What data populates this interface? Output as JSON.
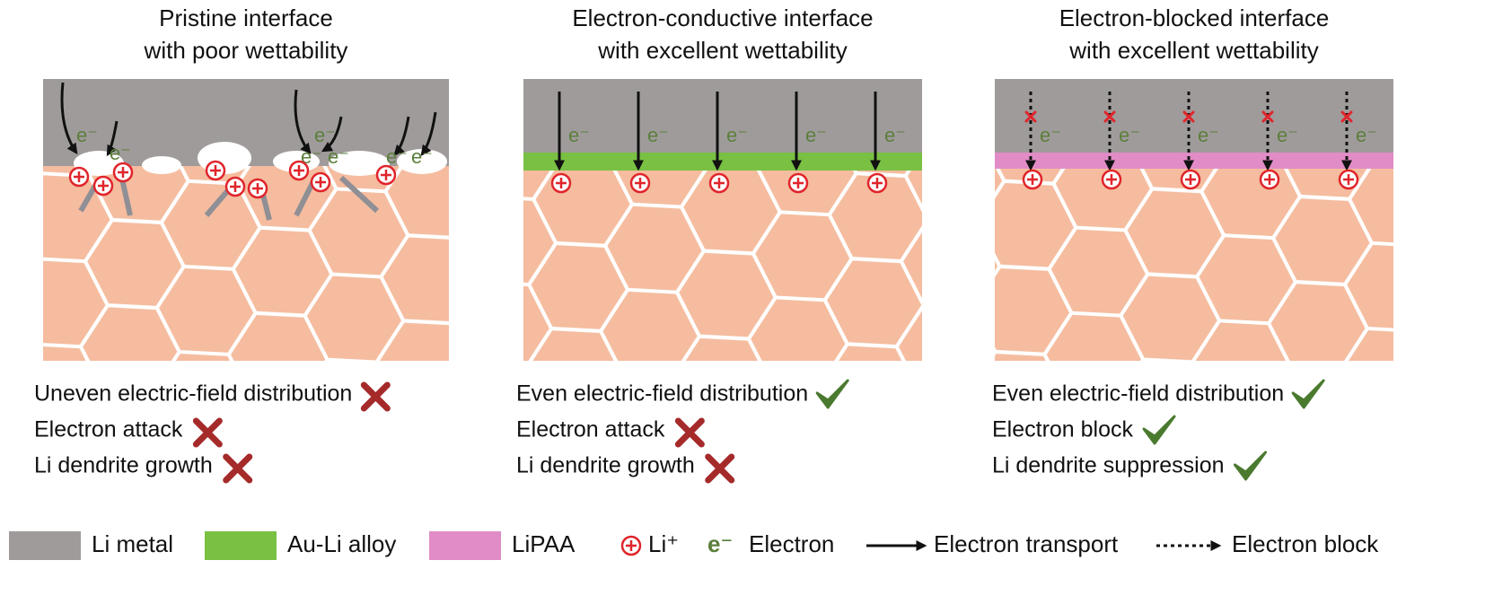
{
  "panels": [
    {
      "title": [
        "Pristine interface",
        "with poor wettability"
      ],
      "items": [
        {
          "text": "Uneven electric-field distribution",
          "ok": false
        },
        {
          "text": "Electron attack",
          "ok": false
        },
        {
          "text": "Li dendrite growth",
          "ok": false
        }
      ]
    },
    {
      "title": [
        "Electron-conductive interface",
        "with excellent wettability"
      ],
      "items": [
        {
          "text": "Even electric-field distribution",
          "ok": true
        },
        {
          "text": "Electron attack",
          "ok": false
        },
        {
          "text": "Li dendrite growth",
          "ok": false
        }
      ]
    },
    {
      "title": [
        "Electron-blocked interface",
        "with excellent wettability"
      ],
      "items": [
        {
          "text": "Even electric-field distribution",
          "ok": true
        },
        {
          "text": "Electron block",
          "ok": true
        },
        {
          "text": "Li dendrite suppression",
          "ok": true
        }
      ]
    }
  ],
  "electron_label": "e⁻",
  "legend": [
    {
      "label": "Li metal"
    },
    {
      "label": "Au-Li alloy"
    },
    {
      "label": "LiPAA"
    },
    {
      "label": "Li⁺"
    },
    {
      "label": "Electron"
    },
    {
      "label": "Electron transport"
    },
    {
      "label": "Electron block"
    }
  ]
}
